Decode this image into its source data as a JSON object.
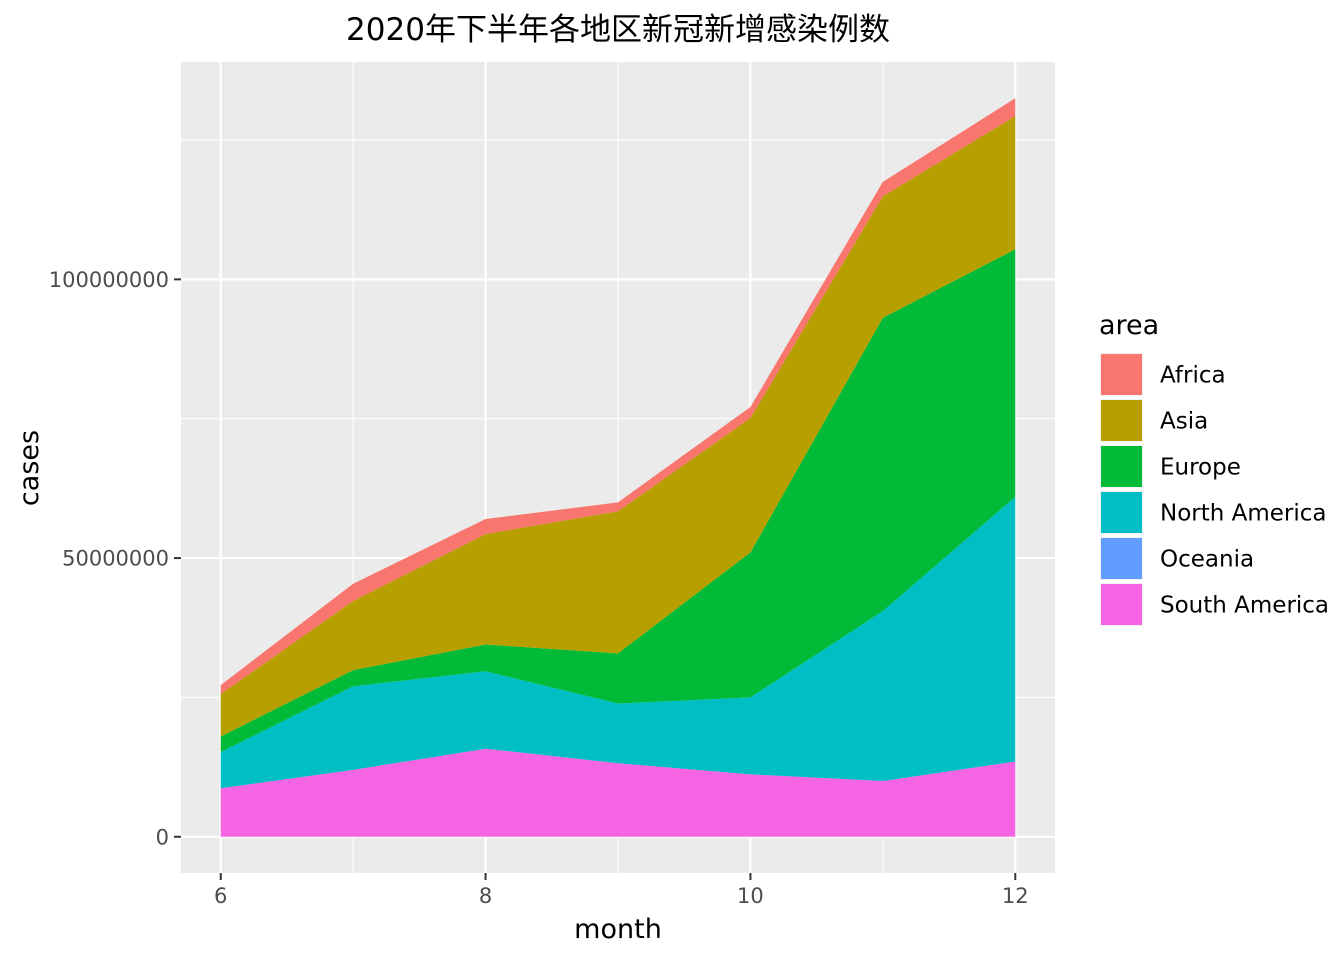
{
  "chart_data": {
    "type": "area",
    "stacked": true,
    "title": "2020年下半年各地区新冠新增感染例数",
    "xlabel": "month",
    "ylabel": "cases",
    "x": [
      6,
      7,
      8,
      9,
      10,
      11,
      12
    ],
    "xlim": [
      5.7,
      12.3
    ],
    "ylim": [
      -6500000,
      139000000
    ],
    "x_ticks": [
      6,
      8,
      10,
      12
    ],
    "x_tick_labels": [
      "6",
      "8",
      "10",
      "12"
    ],
    "y_ticks": [
      0,
      50000000,
      100000000
    ],
    "y_tick_labels": [
      "0",
      "50000000",
      "100000000"
    ],
    "grid": true,
    "background": "#ebebeb",
    "legend": {
      "title": "area",
      "position": "right"
    },
    "series": [
      {
        "name": "South America",
        "color": "#F564E3",
        "values": [
          8700000,
          12000000,
          15800000,
          13200000,
          11200000,
          10000000,
          13500000
        ]
      },
      {
        "name": "Oceania",
        "color": "#619CFF",
        "values": [
          0,
          0,
          0,
          0,
          0,
          0,
          0
        ]
      },
      {
        "name": "North America",
        "color": "#00BFC4",
        "values": [
          6500000,
          15000000,
          13900000,
          10700000,
          13800000,
          30500000,
          47500000
        ]
      },
      {
        "name": "Europe",
        "color": "#00BA38",
        "values": [
          2800000,
          2900000,
          4800000,
          9000000,
          26000000,
          52600000,
          44400000
        ]
      },
      {
        "name": "Asia",
        "color": "#B79F00",
        "values": [
          7600000,
          12400000,
          19800000,
          25500000,
          24100000,
          21800000,
          23900000
        ]
      },
      {
        "name": "Africa",
        "color": "#F8766D",
        "values": [
          1600000,
          3100000,
          2700000,
          1600000,
          2000000,
          2600000,
          3200000
        ]
      }
    ],
    "legend_order": [
      "Africa",
      "Asia",
      "Europe",
      "North America",
      "Oceania",
      "South America"
    ]
  }
}
